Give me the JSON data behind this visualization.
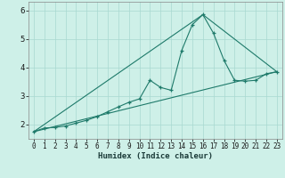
{
  "xlabel": "Humidex (Indice chaleur)",
  "bg_color": "#cef0e8",
  "line_color": "#1e7a6a",
  "xlim": [
    -0.5,
    23.5
  ],
  "ylim": [
    1.5,
    6.3
  ],
  "yticks": [
    2,
    3,
    4,
    5,
    6
  ],
  "xticks": [
    0,
    1,
    2,
    3,
    4,
    5,
    6,
    7,
    8,
    9,
    10,
    11,
    12,
    13,
    14,
    15,
    16,
    17,
    18,
    19,
    20,
    21,
    22,
    23
  ],
  "series1_x": [
    0,
    1,
    2,
    3,
    4,
    5,
    6,
    7,
    8,
    9,
    10,
    11,
    12,
    13,
    14,
    15,
    16,
    17,
    18,
    19,
    20,
    21,
    22,
    23
  ],
  "series1_y": [
    1.75,
    1.88,
    1.9,
    1.95,
    2.05,
    2.15,
    2.28,
    2.45,
    2.62,
    2.78,
    2.9,
    3.55,
    3.3,
    3.2,
    4.6,
    5.5,
    5.85,
    5.2,
    4.25,
    3.55,
    3.52,
    3.55,
    3.78,
    3.85
  ],
  "series2_x": [
    0,
    23
  ],
  "series2_y": [
    1.75,
    3.85
  ],
  "series3_x": [
    0,
    16,
    23
  ],
  "series3_y": [
    1.75,
    5.85,
    3.85
  ],
  "grid_color": "#a8d8d0",
  "xlabel_fontsize": 6.5,
  "tick_fontsize": 5.5,
  "ytick_fontsize": 6.5
}
